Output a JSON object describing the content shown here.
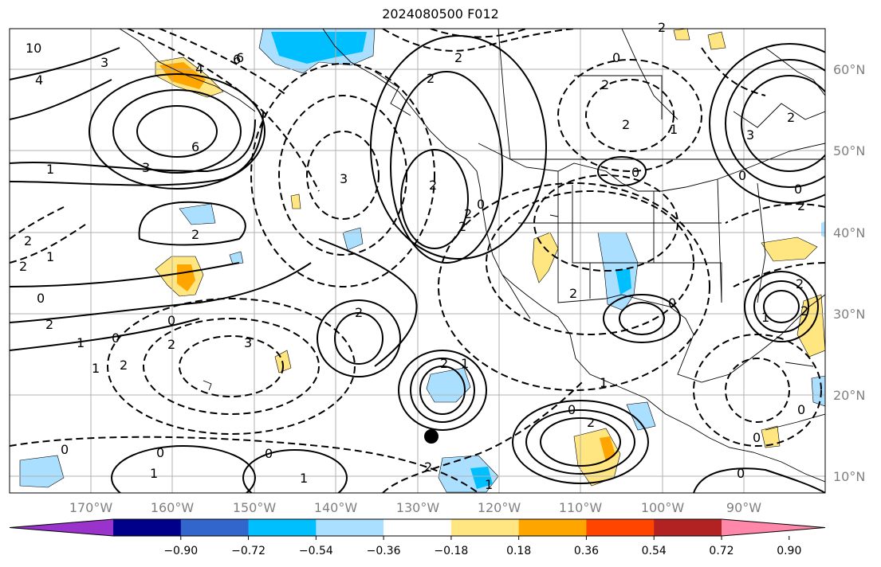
{
  "title": "2024080500 F012",
  "lon_labels": [
    "170°W",
    "160°W",
    "150°W",
    "140°W",
    "130°W",
    "120°W",
    "110°W",
    "100°W",
    "90°W"
  ],
  "lat_labels": [
    "60°N",
    "50°N",
    "40°N",
    "30°N",
    "20°N",
    "10°N"
  ],
  "colorbar": {
    "colors": [
      "#9933cc",
      "#00008b",
      "#3366cc",
      "#00bfff",
      "#aadfff",
      "#ffffff",
      "#ffe680",
      "#ffa500",
      "#ff4500",
      "#b22222",
      "#ff88aa"
    ],
    "tick_labels": [
      "−0.90",
      "−0.72",
      "−0.54",
      "−0.36",
      "−0.18",
      "0.18",
      "0.36",
      "0.54",
      "0.72",
      "0.90"
    ]
  },
  "contour_labels": [
    "10",
    "6",
    "4",
    "3",
    "4",
    "6",
    "3",
    "1",
    "2",
    "2",
    "2",
    "1",
    "0",
    "0",
    "2",
    "1",
    "0",
    "0",
    "2",
    "1",
    "2",
    "1",
    "2",
    "3",
    "2",
    "2",
    "6",
    "2",
    "2",
    "2",
    "0",
    "0",
    "2",
    "1",
    "0",
    "2",
    "3",
    "2",
    "0",
    "2",
    "0",
    "2",
    "0",
    "1",
    "1",
    "2",
    "0",
    "2",
    "0",
    "1",
    "1",
    "0",
    "2",
    "2",
    "0",
    "3",
    "0",
    "2",
    "2",
    "1",
    "0"
  ],
  "marker": "storm-position-dot"
}
